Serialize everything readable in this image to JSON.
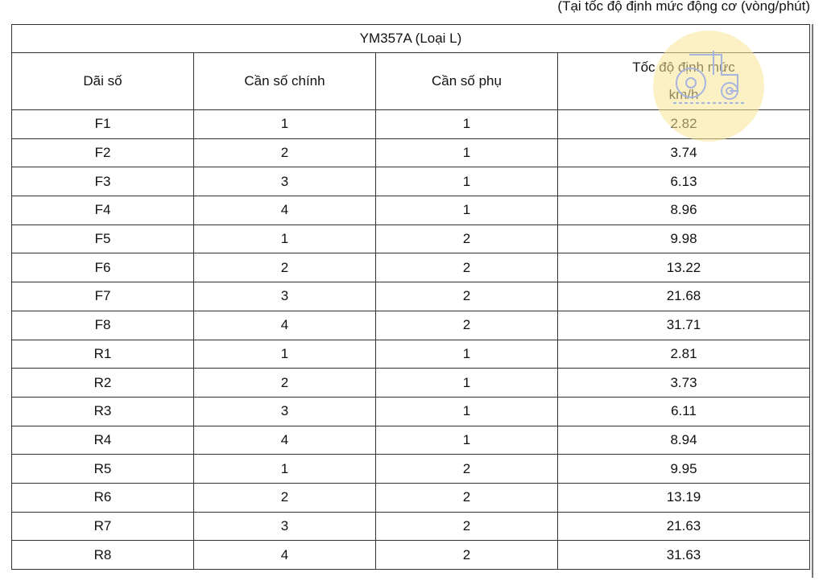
{
  "note": "(Tại tốc độ định mức động cơ (vòng/phút)",
  "table": {
    "title": "YM357A (Loại L)",
    "headers": [
      "Dãi số",
      "Cần số chính",
      "Cần số phụ",
      "Tốc độ định mức",
      "km/h"
    ],
    "rows": [
      [
        "F1",
        "1",
        "1",
        "2.82"
      ],
      [
        "F2",
        "2",
        "1",
        "3.74"
      ],
      [
        "F3",
        "3",
        "1",
        "6.13"
      ],
      [
        "F4",
        "4",
        "1",
        "8.96"
      ],
      [
        "F5",
        "1",
        "2",
        "9.98"
      ],
      [
        "F6",
        "2",
        "2",
        "13.22"
      ],
      [
        "F7",
        "3",
        "2",
        "21.68"
      ],
      [
        "F8",
        "4",
        "2",
        "31.71"
      ],
      [
        "R1",
        "1",
        "1",
        "2.81"
      ],
      [
        "R2",
        "2",
        "1",
        "3.73"
      ],
      [
        "R3",
        "3",
        "1",
        "6.11"
      ],
      [
        "R4",
        "4",
        "1",
        "8.94"
      ],
      [
        "R5",
        "1",
        "2",
        "9.95"
      ],
      [
        "R6",
        "2",
        "2",
        "13.19"
      ],
      [
        "R7",
        "3",
        "2",
        "21.63"
      ],
      [
        "R8",
        "4",
        "2",
        "31.63"
      ]
    ]
  },
  "watermark": {
    "icon": "tractor-icon",
    "color": "#fbeeb5"
  }
}
